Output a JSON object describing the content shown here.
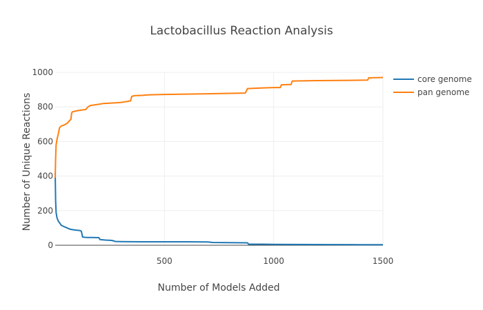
{
  "chart_data": {
    "type": "line",
    "title": "Lactobacillus Reaction Analysis",
    "xlabel": "Number of Models Added",
    "ylabel": "Number of Unique Reactions",
    "xlim": [
      0,
      1500
    ],
    "ylim": [
      0,
      1000
    ],
    "x_ticks": [
      500,
      1000,
      1500
    ],
    "y_ticks": [
      0,
      200,
      400,
      600,
      800,
      1000
    ],
    "grid": true,
    "legend_position": "top-right",
    "series": [
      {
        "name": "core genome",
        "color": "#1f77b4",
        "points": [
          [
            0,
            420
          ],
          [
            2,
            260
          ],
          [
            4,
            190
          ],
          [
            8,
            160
          ],
          [
            14,
            140
          ],
          [
            20,
            130
          ],
          [
            28,
            115
          ],
          [
            40,
            108
          ],
          [
            55,
            100
          ],
          [
            70,
            92
          ],
          [
            90,
            88
          ],
          [
            115,
            85
          ],
          [
            120,
            80
          ],
          [
            125,
            48
          ],
          [
            135,
            46
          ],
          [
            150,
            45
          ],
          [
            170,
            45
          ],
          [
            200,
            44
          ],
          [
            205,
            33
          ],
          [
            230,
            30
          ],
          [
            260,
            28
          ],
          [
            275,
            22
          ],
          [
            300,
            21
          ],
          [
            400,
            20
          ],
          [
            500,
            20
          ],
          [
            600,
            20
          ],
          [
            700,
            19
          ],
          [
            720,
            16
          ],
          [
            800,
            15
          ],
          [
            880,
            14
          ],
          [
            885,
            6
          ],
          [
            950,
            6
          ],
          [
            1000,
            5
          ],
          [
            1200,
            4
          ],
          [
            1400,
            3
          ],
          [
            1500,
            3
          ]
        ]
      },
      {
        "name": "pan genome",
        "color": "#ff7f0e",
        "points": [
          [
            0,
            390
          ],
          [
            2,
            500
          ],
          [
            4,
            580
          ],
          [
            8,
            610
          ],
          [
            15,
            650
          ],
          [
            20,
            680
          ],
          [
            28,
            690
          ],
          [
            40,
            695
          ],
          [
            55,
            705
          ],
          [
            65,
            720
          ],
          [
            72,
            728
          ],
          [
            75,
            765
          ],
          [
            80,
            772
          ],
          [
            90,
            775
          ],
          [
            100,
            778
          ],
          [
            120,
            782
          ],
          [
            140,
            785
          ],
          [
            150,
            800
          ],
          [
            160,
            808
          ],
          [
            180,
            812
          ],
          [
            200,
            815
          ],
          [
            220,
            820
          ],
          [
            250,
            822
          ],
          [
            300,
            826
          ],
          [
            330,
            832
          ],
          [
            345,
            835
          ],
          [
            350,
            860
          ],
          [
            360,
            865
          ],
          [
            400,
            867
          ],
          [
            430,
            870
          ],
          [
            500,
            872
          ],
          [
            600,
            874
          ],
          [
            700,
            876
          ],
          [
            780,
            878
          ],
          [
            870,
            880
          ],
          [
            880,
            906
          ],
          [
            950,
            910
          ],
          [
            1000,
            912
          ],
          [
            1030,
            912
          ],
          [
            1035,
            928
          ],
          [
            1080,
            930
          ],
          [
            1085,
            950
          ],
          [
            1200,
            952
          ],
          [
            1300,
            953
          ],
          [
            1430,
            955
          ],
          [
            1435,
            968
          ],
          [
            1500,
            970
          ]
        ]
      }
    ]
  }
}
